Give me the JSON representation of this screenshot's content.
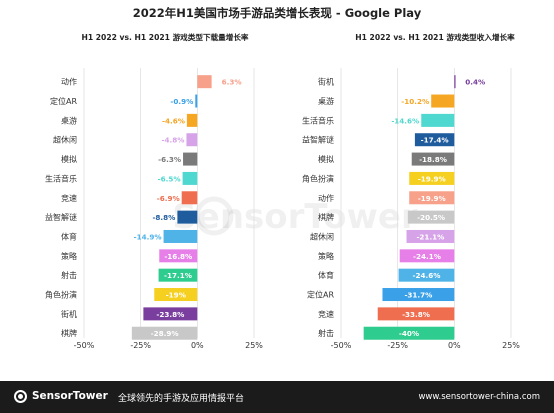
{
  "title": "2022年H1美国市场手游品类增长表现 - Google Play",
  "watermark": "SensorTower",
  "footer": {
    "brand": "SensorTower",
    "tagline": "全球领先的手游及应用情报平台",
    "url": "www.sensortower-china.com"
  },
  "chart_data": [
    {
      "type": "bar",
      "orientation": "horizontal",
      "title": "H1 2022 vs. H1 2021 游戏类型下载量增长率",
      "categories": [
        "动作",
        "定位AR",
        "桌游",
        "超休闲",
        "模拟",
        "生活音乐",
        "竞速",
        "益智解谜",
        "体育",
        "策略",
        "射击",
        "角色扮演",
        "街机",
        "棋牌"
      ],
      "values": [
        6.3,
        -0.9,
        -4.6,
        -4.8,
        -6.3,
        -6.5,
        -6.9,
        -8.8,
        -14.9,
        -16.8,
        -17.1,
        -19,
        -23.8,
        -28.9
      ],
      "data_labels": [
        "6.3%",
        "-0.9%",
        "-4.6%",
        "-4.8%",
        "-6.3%",
        "-6.5%",
        "-6.9%",
        "-8.8%",
        "-14.9%",
        "-16.8%",
        "-17.1%",
        "-19%",
        "-23.8%",
        "-28.9%"
      ],
      "colors": [
        "#f7a08a",
        "#3aa0e8",
        "#f5a623",
        "#d7a3e8",
        "#7a7a7a",
        "#4fd8d0",
        "#ef6e4f",
        "#1f5c9e",
        "#4fb3e8",
        "#e680e8",
        "#2ecc8e",
        "#f5d020",
        "#7a3e9e",
        "#c8c8c8"
      ],
      "xlim": [
        -50,
        25
      ],
      "xticks": [
        "-50%",
        "-25%",
        "0%",
        "25%"
      ],
      "grid": true
    },
    {
      "type": "bar",
      "orientation": "horizontal",
      "title": "H1 2022 vs. H1 2021 游戏类型收入增长率",
      "categories": [
        "街机",
        "桌游",
        "生活音乐",
        "益智解谜",
        "模拟",
        "角色扮演",
        "动作",
        "棋牌",
        "超休闲",
        "策略",
        "体育",
        "定位AR",
        "竞速",
        "射击"
      ],
      "values": [
        0.4,
        -10.2,
        -14.6,
        -17.4,
        -18.8,
        -19.9,
        -19.9,
        -20.5,
        -21.1,
        -24.1,
        -24.6,
        -31.7,
        -33.8,
        -40
      ],
      "data_labels": [
        "0.4%",
        "-10.2%",
        "-14.6%",
        "-17.4%",
        "-18.8%",
        "-19.9%",
        "-19.9%",
        "-20.5%",
        "-21.1%",
        "-24.1%",
        "-24.6%",
        "-31.7%",
        "-33.8%",
        "-40%"
      ],
      "colors": [
        "#7a3e9e",
        "#f5a623",
        "#4fd8d0",
        "#1f5c9e",
        "#7a7a7a",
        "#f5d020",
        "#f7a08a",
        "#c8c8c8",
        "#d7a3e8",
        "#e680e8",
        "#4fb3e8",
        "#3aa0e8",
        "#ef6e4f",
        "#2ecc8e"
      ],
      "xlim": [
        -50,
        25
      ],
      "xticks": [
        "-50%",
        "-25%",
        "0%",
        "25%"
      ],
      "grid": true
    }
  ]
}
